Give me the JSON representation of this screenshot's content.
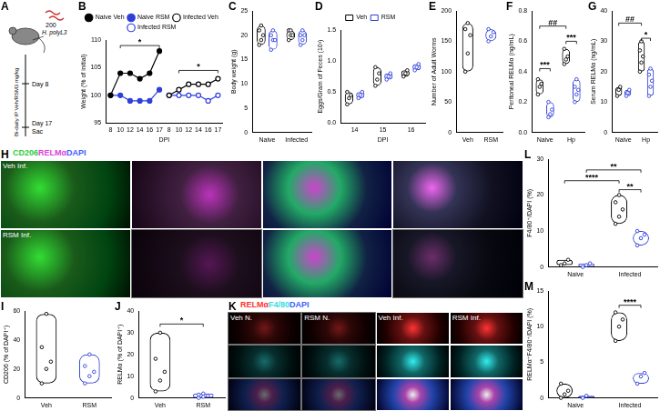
{
  "chart_data": [
    {
      "panel": "B",
      "type": "line",
      "x_label": "DPI",
      "y_label": "Weight (% of initial)",
      "categories": [
        "8",
        "10",
        "12",
        "14",
        "16",
        "17",
        "8",
        "10",
        "12",
        "14",
        "16",
        "17"
      ],
      "series": [
        {
          "name": "Naive Veh",
          "color": "#000000",
          "marker": "filled",
          "values": [
            100,
            104,
            104,
            103,
            104,
            108,
            null,
            null,
            null,
            null,
            null,
            null
          ]
        },
        {
          "name": "Naive RSM",
          "color": "#2f3fd8",
          "marker": "filled",
          "values": [
            100,
            100,
            99,
            99,
            99,
            101,
            null,
            null,
            null,
            null,
            null,
            null
          ]
        },
        {
          "name": "Infected Veh",
          "color": "#000000",
          "marker": "open",
          "values": [
            null,
            null,
            null,
            null,
            null,
            null,
            100,
            101,
            102,
            102,
            102,
            103
          ]
        },
        {
          "name": "Infected RSM",
          "color": "#2f3fd8",
          "marker": "open",
          "values": [
            null,
            null,
            null,
            null,
            null,
            null,
            100,
            100,
            100,
            100,
            99,
            100
          ]
        }
      ],
      "ylim": [
        95,
        110
      ],
      "yticks": [
        95,
        100,
        105,
        110
      ],
      "grid": false,
      "legend": "top",
      "annotations": [
        {
          "text": "*",
          "between": [
            1,
            5
          ],
          "y": 109
        },
        {
          "text": "*",
          "between": [
            7,
            11
          ],
          "y": 104.5
        }
      ]
    },
    {
      "panel": "C",
      "type": "violin",
      "y_label": "Body weight (g)",
      "categories": [
        "Naive",
        "Infected"
      ],
      "series": [
        {
          "name": "Veh",
          "color": "#000000",
          "values": [
            [
              18,
              19,
              20,
              21,
              22
            ],
            [
              19,
              20,
              20,
              21,
              21
            ]
          ]
        },
        {
          "name": "RSM",
          "color": "#2f3fd8",
          "values": [
            [
              17,
              19,
              19,
              20,
              21
            ],
            [
              18,
              19,
              20,
              20,
              21
            ]
          ]
        }
      ],
      "ylim": [
        0,
        25
      ],
      "yticks": [
        0,
        5,
        10,
        15,
        20,
        25
      ],
      "grid": false
    },
    {
      "panel": "D",
      "type": "violin",
      "x_label": "DPI",
      "y_label": "Eggs/Gram of Feces (10³)",
      "categories": [
        "14",
        "15",
        "16"
      ],
      "series": [
        {
          "name": "Veh",
          "color": "#000000",
          "values": [
            [
              0.3,
              0.4,
              0.45,
              0.5
            ],
            [
              0.6,
              0.7,
              0.8,
              0.9
            ],
            [
              0.75,
              0.8,
              0.85
            ]
          ]
        },
        {
          "name": "RSM",
          "color": "#2f3fd8",
          "values": [
            [
              0.4,
              0.45,
              0.5
            ],
            [
              0.7,
              0.75,
              0.8
            ],
            [
              0.85,
              0.9,
              0.95
            ]
          ]
        }
      ],
      "ylim": [
        0,
        1.5
      ],
      "yticks": [
        {
          "value": 0,
          "label": "0.0"
        },
        0.5,
        {
          "value": 1,
          "label": "1.0"
        },
        1.5
      ],
      "grid": false,
      "legend": "top"
    },
    {
      "panel": "E",
      "type": "violin",
      "y_label": "Number of Adult Worms",
      "categories": [
        "Veh",
        "RSM"
      ],
      "values": [
        [
          100,
          130,
          160,
          170,
          180
        ],
        [
          150,
          158,
          165,
          170
        ]
      ],
      "colors": [
        "#000000",
        "#2f3fd8"
      ],
      "ylim": [
        0,
        200
      ],
      "yticks": [
        0,
        50,
        100,
        150,
        200
      ],
      "grid": false
    },
    {
      "panel": "F",
      "type": "violin",
      "y_label": "Peritoneal RELMα (ng/mL)",
      "categories": [
        "Naive",
        "Hp"
      ],
      "series": [
        {
          "name": "Veh",
          "color": "#000000",
          "values": [
            [
              0.25,
              0.3,
              0.32,
              0.35
            ],
            [
              0.45,
              0.48,
              0.5,
              0.55
            ]
          ]
        },
        {
          "name": "RSM",
          "color": "#2f3fd8",
          "values": [
            [
              0.1,
              0.12,
              0.15,
              0.2
            ],
            [
              0.2,
              0.25,
              0.28,
              0.3,
              0.35
            ]
          ]
        }
      ],
      "ylim": [
        0,
        0.8
      ],
      "yticks": [
        {
          "value": 0,
          "label": "0.0"
        },
        0.2,
        0.4,
        0.6,
        0.8
      ],
      "grid": false,
      "annotations": [
        {
          "text": "***",
          "between": [
            [
              "Naive",
              "Veh"
            ],
            [
              "Naive",
              "RSM"
            ]
          ],
          "y": 0.42
        },
        {
          "text": "***",
          "between": [
            [
              "Hp",
              "Veh"
            ],
            [
              "Hp",
              "RSM"
            ]
          ],
          "y": 0.6
        },
        {
          "text": "##",
          "between": [
            [
              "Naive",
              "Veh"
            ],
            [
              "Hp",
              "Veh"
            ]
          ],
          "y": 0.7
        }
      ]
    },
    {
      "panel": "G",
      "type": "violin",
      "y_label": "Serum RELMα (ng/mL)",
      "categories": [
        "Naive",
        "Hp"
      ],
      "series": [
        {
          "name": "Veh",
          "color": "#000000",
          "values": [
            [
              12,
              14,
              15
            ],
            [
              20,
              23,
              25,
              27,
              30
            ]
          ]
        },
        {
          "name": "RSM",
          "color": "#2f3fd8",
          "values": [
            [
              12,
              13,
              14
            ],
            [
              12,
              15,
              17,
              19,
              21
            ]
          ]
        }
      ],
      "ylim": [
        0,
        40
      ],
      "yticks": [
        0,
        10,
        20,
        30,
        40
      ],
      "grid": false,
      "annotations": [
        {
          "text": "*",
          "between": [
            [
              "Hp",
              "Veh"
            ],
            [
              "Hp",
              "RSM"
            ]
          ],
          "y": 31
        },
        {
          "text": "##",
          "between": [
            [
              "Naive",
              "Veh"
            ],
            [
              "Hp",
              "Veh"
            ]
          ],
          "y": 36
        }
      ]
    },
    {
      "panel": "I",
      "type": "violin",
      "y_label": "CD206 (% of DAPI⁺)",
      "categories": [
        "Veh",
        "RSM"
      ],
      "values": [
        [
          10,
          20,
          25,
          35,
          58
        ],
        [
          10,
          15,
          18,
          22,
          30
        ]
      ],
      "colors": [
        "#000000",
        "#2f3fd8"
      ],
      "ylim": [
        0,
        60
      ],
      "yticks": [
        0,
        20,
        40,
        60
      ],
      "grid": false
    },
    {
      "panel": "J",
      "type": "violin",
      "y_label": "RELMα (% of DAPI⁺)",
      "categories": [
        "Veh",
        "RSM"
      ],
      "values": [
        [
          3,
          8,
          12,
          18,
          30
        ],
        [
          0,
          0.5,
          1,
          1.5,
          2
        ]
      ],
      "colors": [
        "#000000",
        "#2f3fd8"
      ],
      "ylim": [
        0,
        40
      ],
      "yticks": [
        0,
        10,
        20,
        30,
        40
      ],
      "grid": false,
      "annotations": [
        {
          "text": "*",
          "between": [
            "Veh",
            "RSM"
          ],
          "y": 34
        }
      ]
    },
    {
      "panel": "L",
      "type": "violin",
      "y_label": "F4/80⁺/DAPI (%)",
      "categories": [
        "Naive",
        "Infected"
      ],
      "series": [
        {
          "name": "Veh",
          "color": "#000000",
          "values": [
            [
              0.5,
              1,
              2
            ],
            [
              12,
              14,
              16,
              18,
              20
            ]
          ]
        },
        {
          "name": "RSM",
          "color": "#2f3fd8",
          "values": [
            [
              0,
              0.5,
              1
            ],
            [
              6,
              8,
              9,
              10
            ]
          ]
        }
      ],
      "ylim": [
        0,
        30
      ],
      "yticks": [
        0,
        10,
        20,
        30
      ],
      "grid": false,
      "annotations": [
        {
          "text": "**",
          "between": [
            [
              "Infected",
              "Veh"
            ],
            [
              "Infected",
              "RSM"
            ]
          ],
          "y": 21.5
        },
        {
          "text": "****",
          "between": [
            [
              "Naive",
              "Veh"
            ],
            [
              "Infected",
              "Veh"
            ]
          ],
          "y": 24
        },
        {
          "text": "**",
          "between": [
            [
              "Naive",
              "RSM"
            ],
            [
              "Infected",
              "RSM"
            ]
          ],
          "y": 27
        }
      ]
    },
    {
      "panel": "M",
      "type": "violin",
      "y_label": "RELMα⁺F4/80⁺/DAPI (%)",
      "categories": [
        "Naive",
        "Infected"
      ],
      "series": [
        {
          "name": "Veh",
          "color": "#000000",
          "values": [
            [
              0,
              0.5,
              1,
              2
            ],
            [
              8,
              10,
              11,
              12
            ]
          ]
        },
        {
          "name": "RSM",
          "color": "#2f3fd8",
          "values": [
            [
              0,
              0.3
            ],
            [
              2,
              3,
              3.5
            ]
          ]
        }
      ],
      "ylim": [
        0,
        15
      ],
      "yticks": [
        0,
        5,
        10,
        15
      ],
      "grid": false,
      "annotations": [
        {
          "text": "****",
          "between": [
            [
              "Infected",
              "Veh"
            ],
            [
              "Infected",
              "RSM"
            ]
          ],
          "y": 13
        }
      ]
    }
  ],
  "schematic": {
    "panel": "A",
    "dose": "200",
    "larvae": "H. polyL3",
    "treatment": "Bi-daily IP Veh/RSM3 mg/kg",
    "timepoints": [
      "Day 8",
      "Day 17"
    ],
    "endpoint": "Sac"
  },
  "image_panels": [
    {
      "panel": "H",
      "channels": [
        {
          "text": "CD206",
          "color": "#2ecc40"
        },
        {
          "text": "RELMα",
          "color": "#e040e0"
        },
        {
          "text": "DAPI",
          "color": "#4060ff"
        }
      ],
      "rows": [
        "Veh Inf.",
        "RSM Inf."
      ]
    },
    {
      "panel": "K",
      "channels": [
        {
          "text": "RELMα",
          "color": "#ff3030"
        },
        {
          "text": "F4/80",
          "color": "#30e0e0"
        },
        {
          "text": "DAPI",
          "color": "#4060ff"
        }
      ],
      "columns": [
        "Veh N.",
        "RSM N.",
        "Veh Inf.",
        "RSM Inf."
      ]
    }
  ]
}
